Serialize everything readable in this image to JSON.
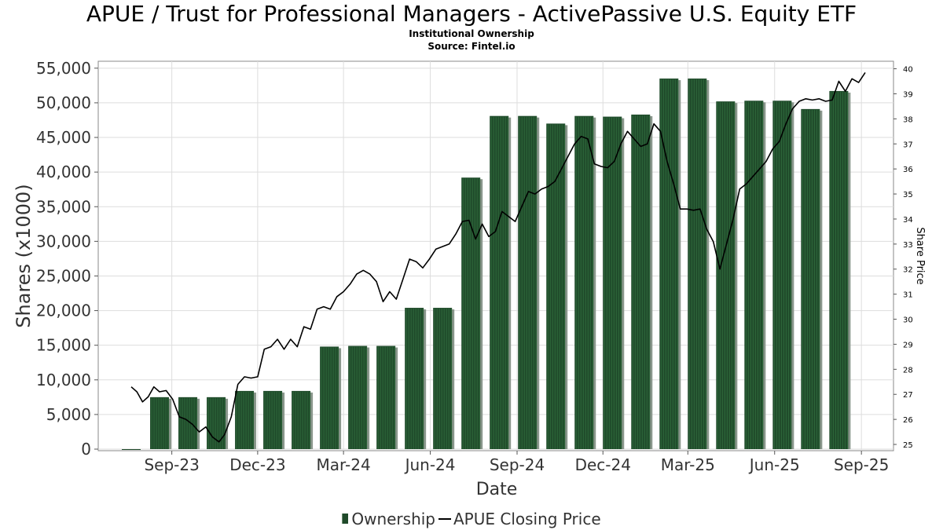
{
  "header": {
    "title": "APUE / Trust for Professional Managers - ActivePassive U.S. Equity ETF",
    "subtitle": "Institutional Ownership",
    "source": "Source: Fintel.io"
  },
  "legend": {
    "ownership": "Ownership",
    "price": "APUE Closing Price"
  },
  "colors": {
    "bar": "#1f4a2a",
    "bar_shadow": "#8a978c",
    "line": "#000000",
    "grid": "#dddddd"
  },
  "chart_data": {
    "type": "bar",
    "xlabel": "Date",
    "ylabel": "Shares (x1000)",
    "y2label": "Share Price",
    "ylim": [
      0,
      56000
    ],
    "y2lim": [
      24.75,
      40.3
    ],
    "xlim": [
      "2023-06-15",
      "2025-10-05"
    ],
    "grid": true,
    "legend_position": "bottom-center",
    "y_ticks": [
      0,
      5000,
      10000,
      15000,
      20000,
      25000,
      30000,
      35000,
      40000,
      45000,
      50000,
      55000
    ],
    "y_tick_labels": [
      "0",
      "5,000",
      "10,000",
      "15,000",
      "20,000",
      "25,000",
      "30,000",
      "35,000",
      "40,000",
      "45,000",
      "50,000",
      "55,000"
    ],
    "y2_ticks": [
      25,
      26,
      27,
      28,
      29,
      30,
      31,
      32,
      33,
      34,
      35,
      36,
      37,
      38,
      39,
      40
    ],
    "x_ticks": [
      {
        "date": "2023-09-01",
        "label": "Sep-23"
      },
      {
        "date": "2023-12-01",
        "label": "Dec-23"
      },
      {
        "date": "2024-03-01",
        "label": "Mar-24"
      },
      {
        "date": "2024-06-01",
        "label": "Jun-24"
      },
      {
        "date": "2024-09-01",
        "label": "Sep-24"
      },
      {
        "date": "2024-12-01",
        "label": "Dec-24"
      },
      {
        "date": "2025-03-01",
        "label": "Mar-25"
      },
      {
        "date": "2025-06-01",
        "label": "Jun-25"
      },
      {
        "date": "2025-09-01",
        "label": "Sep-25"
      }
    ],
    "series": [
      {
        "name": "Ownership",
        "type": "bar",
        "points": [
          {
            "date": "2023-07-20",
            "value": 0
          },
          {
            "date": "2023-08-19",
            "value": 7500
          },
          {
            "date": "2023-09-18",
            "value": 7500
          },
          {
            "date": "2023-10-18",
            "value": 7500
          },
          {
            "date": "2023-11-17",
            "value": 8400
          },
          {
            "date": "2023-12-17",
            "value": 8400
          },
          {
            "date": "2024-01-16",
            "value": 8400
          },
          {
            "date": "2024-02-15",
            "value": 14800
          },
          {
            "date": "2024-03-16",
            "value": 14900
          },
          {
            "date": "2024-04-15",
            "value": 14900
          },
          {
            "date": "2024-05-15",
            "value": 20400
          },
          {
            "date": "2024-06-14",
            "value": 20400
          },
          {
            "date": "2024-07-14",
            "value": 39200
          },
          {
            "date": "2024-08-13",
            "value": 48100
          },
          {
            "date": "2024-09-12",
            "value": 48100
          },
          {
            "date": "2024-10-12",
            "value": 47000
          },
          {
            "date": "2024-11-11",
            "value": 48100
          },
          {
            "date": "2024-12-11",
            "value": 48000
          },
          {
            "date": "2025-01-10",
            "value": 48300
          },
          {
            "date": "2025-02-09",
            "value": 53500
          },
          {
            "date": "2025-03-11",
            "value": 53500
          },
          {
            "date": "2025-04-10",
            "value": 50200
          },
          {
            "date": "2025-05-10",
            "value": 50300
          },
          {
            "date": "2025-06-09",
            "value": 50300
          },
          {
            "date": "2025-07-09",
            "value": 49100
          },
          {
            "date": "2025-08-08",
            "value": 51700
          }
        ]
      },
      {
        "name": "APUE Closing Price",
        "type": "line",
        "axis": "right",
        "points": [
          {
            "date": "2023-07-20",
            "value": 27.3
          },
          {
            "date": "2023-07-26",
            "value": 27.1
          },
          {
            "date": "2023-08-01",
            "value": 26.7
          },
          {
            "date": "2023-08-07",
            "value": 26.9
          },
          {
            "date": "2023-08-13",
            "value": 27.3
          },
          {
            "date": "2023-08-19",
            "value": 27.1
          },
          {
            "date": "2023-08-26",
            "value": 27.15
          },
          {
            "date": "2023-09-02",
            "value": 26.8
          },
          {
            "date": "2023-09-09",
            "value": 26.1
          },
          {
            "date": "2023-09-16",
            "value": 26.0
          },
          {
            "date": "2023-09-23",
            "value": 25.8
          },
          {
            "date": "2023-09-30",
            "value": 25.5
          },
          {
            "date": "2023-10-07",
            "value": 25.7
          },
          {
            "date": "2023-10-14",
            "value": 25.3
          },
          {
            "date": "2023-10-21",
            "value": 25.1
          },
          {
            "date": "2023-10-27",
            "value": 25.4
          },
          {
            "date": "2023-11-03",
            "value": 26.1
          },
          {
            "date": "2023-11-10",
            "value": 27.4
          },
          {
            "date": "2023-11-17",
            "value": 27.7
          },
          {
            "date": "2023-11-24",
            "value": 27.65
          },
          {
            "date": "2023-12-01",
            "value": 27.7
          },
          {
            "date": "2023-12-08",
            "value": 28.8
          },
          {
            "date": "2023-12-15",
            "value": 28.9
          },
          {
            "date": "2023-12-22",
            "value": 29.2
          },
          {
            "date": "2023-12-29",
            "value": 28.8
          },
          {
            "date": "2024-01-05",
            "value": 29.2
          },
          {
            "date": "2024-01-12",
            "value": 28.9
          },
          {
            "date": "2024-01-19",
            "value": 29.7
          },
          {
            "date": "2024-01-26",
            "value": 29.6
          },
          {
            "date": "2024-02-02",
            "value": 30.4
          },
          {
            "date": "2024-02-09",
            "value": 30.5
          },
          {
            "date": "2024-02-16",
            "value": 30.4
          },
          {
            "date": "2024-02-23",
            "value": 30.9
          },
          {
            "date": "2024-03-01",
            "value": 31.1
          },
          {
            "date": "2024-03-08",
            "value": 31.4
          },
          {
            "date": "2024-03-15",
            "value": 31.8
          },
          {
            "date": "2024-03-22",
            "value": 31.95
          },
          {
            "date": "2024-03-29",
            "value": 31.8
          },
          {
            "date": "2024-04-05",
            "value": 31.5
          },
          {
            "date": "2024-04-12",
            "value": 30.7
          },
          {
            "date": "2024-04-19",
            "value": 31.1
          },
          {
            "date": "2024-04-26",
            "value": 30.8
          },
          {
            "date": "2024-05-03",
            "value": 31.6
          },
          {
            "date": "2024-05-10",
            "value": 32.4
          },
          {
            "date": "2024-05-17",
            "value": 32.3
          },
          {
            "date": "2024-05-24",
            "value": 32.05
          },
          {
            "date": "2024-05-31",
            "value": 32.4
          },
          {
            "date": "2024-06-07",
            "value": 32.8
          },
          {
            "date": "2024-06-14",
            "value": 32.9
          },
          {
            "date": "2024-06-21",
            "value": 33.0
          },
          {
            "date": "2024-06-28",
            "value": 33.4
          },
          {
            "date": "2024-07-05",
            "value": 33.9
          },
          {
            "date": "2024-07-12",
            "value": 33.95
          },
          {
            "date": "2024-07-19",
            "value": 33.2
          },
          {
            "date": "2024-07-26",
            "value": 33.8
          },
          {
            "date": "2024-08-02",
            "value": 33.3
          },
          {
            "date": "2024-08-09",
            "value": 33.5
          },
          {
            "date": "2024-08-16",
            "value": 34.3
          },
          {
            "date": "2024-08-23",
            "value": 34.1
          },
          {
            "date": "2024-08-30",
            "value": 33.9
          },
          {
            "date": "2024-09-06",
            "value": 34.5
          },
          {
            "date": "2024-09-13",
            "value": 35.1
          },
          {
            "date": "2024-09-20",
            "value": 35.0
          },
          {
            "date": "2024-09-27",
            "value": 35.2
          },
          {
            "date": "2024-10-04",
            "value": 35.3
          },
          {
            "date": "2024-10-11",
            "value": 35.5
          },
          {
            "date": "2024-10-18",
            "value": 36.0
          },
          {
            "date": "2024-10-25",
            "value": 36.5
          },
          {
            "date": "2024-11-01",
            "value": 37.0
          },
          {
            "date": "2024-11-08",
            "value": 37.3
          },
          {
            "date": "2024-11-15",
            "value": 37.2
          },
          {
            "date": "2024-11-22",
            "value": 36.2
          },
          {
            "date": "2024-11-29",
            "value": 36.1
          },
          {
            "date": "2024-12-06",
            "value": 36.05
          },
          {
            "date": "2024-12-13",
            "value": 36.3
          },
          {
            "date": "2024-12-20",
            "value": 37.0
          },
          {
            "date": "2024-12-27",
            "value": 37.5
          },
          {
            "date": "2025-01-03",
            "value": 37.2
          },
          {
            "date": "2025-01-10",
            "value": 36.9
          },
          {
            "date": "2025-01-17",
            "value": 37.0
          },
          {
            "date": "2025-01-24",
            "value": 37.8
          },
          {
            "date": "2025-01-31",
            "value": 37.5
          },
          {
            "date": "2025-02-07",
            "value": 36.3
          },
          {
            "date": "2025-02-14",
            "value": 35.4
          },
          {
            "date": "2025-02-21",
            "value": 34.4
          },
          {
            "date": "2025-02-28",
            "value": 34.4
          },
          {
            "date": "2025-03-07",
            "value": 34.35
          },
          {
            "date": "2025-03-14",
            "value": 34.4
          },
          {
            "date": "2025-03-21",
            "value": 33.6
          },
          {
            "date": "2025-03-28",
            "value": 33.1
          },
          {
            "date": "2025-04-04",
            "value": 32.0
          },
          {
            "date": "2025-04-11",
            "value": 33.0
          },
          {
            "date": "2025-04-18",
            "value": 34.0
          },
          {
            "date": "2025-04-25",
            "value": 35.2
          },
          {
            "date": "2025-05-02",
            "value": 35.4
          },
          {
            "date": "2025-05-09",
            "value": 35.7
          },
          {
            "date": "2025-05-16",
            "value": 36.0
          },
          {
            "date": "2025-05-23",
            "value": 36.3
          },
          {
            "date": "2025-05-30",
            "value": 36.8
          },
          {
            "date": "2025-06-06",
            "value": 37.1
          },
          {
            "date": "2025-06-13",
            "value": 37.8
          },
          {
            "date": "2025-06-20",
            "value": 38.4
          },
          {
            "date": "2025-06-27",
            "value": 38.7
          },
          {
            "date": "2025-07-04",
            "value": 38.8
          },
          {
            "date": "2025-07-11",
            "value": 38.75
          },
          {
            "date": "2025-07-18",
            "value": 38.8
          },
          {
            "date": "2025-07-25",
            "value": 38.7
          },
          {
            "date": "2025-08-01",
            "value": 38.75
          },
          {
            "date": "2025-08-08",
            "value": 39.5
          },
          {
            "date": "2025-08-15",
            "value": 39.1
          },
          {
            "date": "2025-08-22",
            "value": 39.6
          },
          {
            "date": "2025-08-29",
            "value": 39.45
          },
          {
            "date": "2025-09-05",
            "value": 39.85
          }
        ]
      }
    ]
  }
}
